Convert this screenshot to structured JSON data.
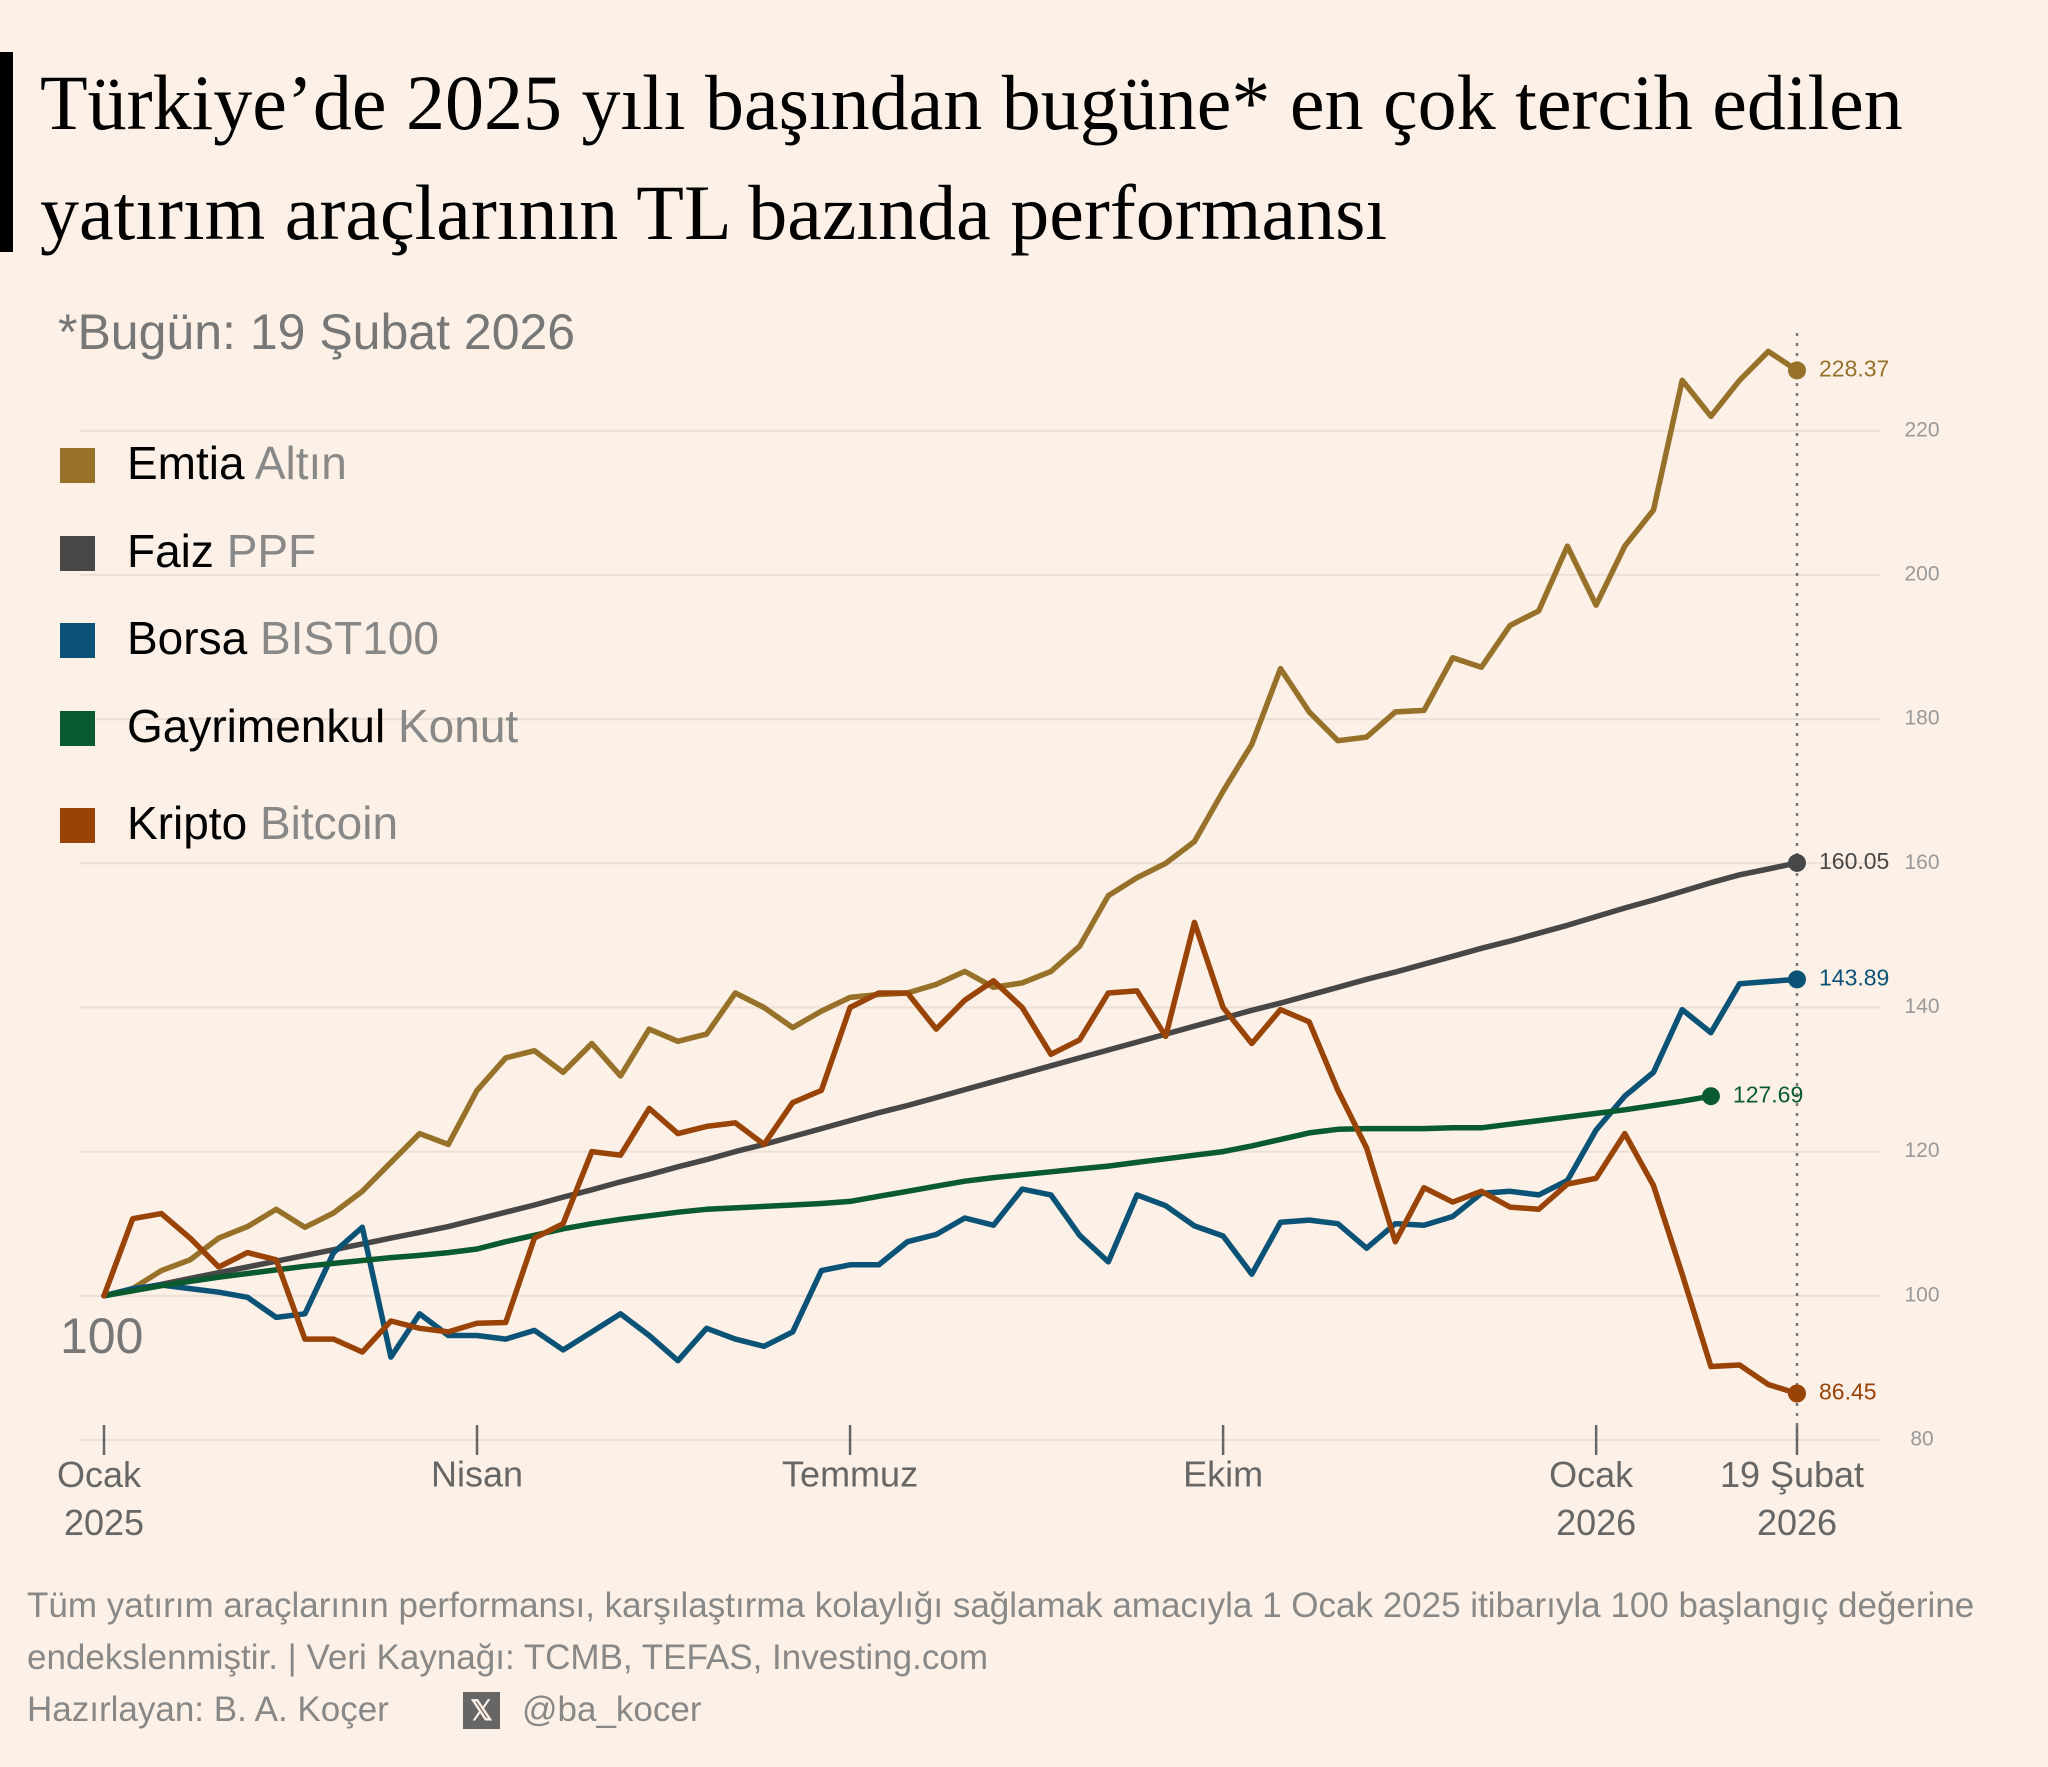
{
  "chart_data": {
    "type": "line",
    "title": "Türkiye’de 2025 yılı başından bugüne* en çok tercih edilen yatırım araçlarının TL bazında performansı",
    "subtitle": "*Bugün: 19 Şubat 2026",
    "start_label": 100,
    "note": "Tüm yatırım araçlarının performansı, karşılaştırma kolaylığı sağlamak amacıyla 1 Ocak 2025 itibarıyla 100 başlangıç değerine endekslenmiştir. | Veri Kaynağı: TCMB, TEFAS, Investing.com",
    "author": "Hazırlayan: B. A. Koçer",
    "handle": "@ba_kocer",
    "categories": [
      "Ocak 2025",
      null,
      null,
      null,
      null,
      null,
      null,
      null,
      null,
      null,
      null,
      null,
      null,
      "Nisan",
      null,
      null,
      null,
      null,
      null,
      null,
      null,
      null,
      null,
      null,
      null,
      null,
      "Temmuz",
      null,
      null,
      null,
      null,
      null,
      null,
      null,
      null,
      null,
      null,
      null,
      null,
      "Ekim",
      null,
      null,
      null,
      null,
      null,
      null,
      null,
      null,
      null,
      null,
      null,
      null,
      "Ocak 2026",
      null,
      null,
      null,
      null,
      null,
      null,
      "19 Şubat 2026"
    ],
    "ylim": [
      80,
      233
    ],
    "yticks": [
      80,
      100,
      120,
      140,
      160,
      180,
      200,
      220
    ],
    "grid": true,
    "series": [
      {
        "group": "Emtia",
        "name": "Altın",
        "color": "#977129",
        "values": [
          100,
          101,
          103.5,
          105,
          108,
          109.6,
          112,
          109.5,
          111.5,
          114.5,
          118.5,
          122.5,
          121,
          128.5,
          133,
          134,
          131,
          135,
          130.5,
          137,
          135.3,
          136.3,
          142,
          140,
          137.2,
          139.5,
          141.4,
          141.8,
          142,
          143.2,
          145,
          142.8,
          143.4,
          145,
          148.5,
          155.5,
          158,
          160,
          163,
          170,
          176.5,
          187,
          181,
          177,
          177.5,
          181,
          181.2,
          188.5,
          187.2,
          193,
          195,
          204,
          195.8,
          204,
          209,
          227,
          222,
          227,
          231,
          228.37
        ]
      },
      {
        "group": "Faiz",
        "name": "PPF",
        "color": "#474747",
        "values": [
          100,
          100.8,
          101.6,
          102.4,
          103.2,
          104,
          104.8,
          105.6,
          106.4,
          107.2,
          108,
          108.8,
          109.6,
          110.6,
          111.6,
          112.6,
          113.7,
          114.7,
          115.8,
          116.8,
          117.9,
          118.9,
          120,
          121,
          122.1,
          123.2,
          124.3,
          125.4,
          126.4,
          127.5,
          128.6,
          129.7,
          130.8,
          131.9,
          133,
          134.1,
          135.2,
          136.3,
          137.4,
          138.5,
          139.6,
          140.6,
          141.7,
          142.8,
          143.9,
          144.9,
          146,
          147.1,
          148.2,
          149.2,
          150.3,
          151.4,
          152.6,
          153.8,
          154.9,
          156.1,
          157.3,
          158.4,
          159.2,
          160.05
        ]
      },
      {
        "group": "Borsa",
        "name": "BIST100",
        "color": "#0b5277",
        "values": [
          100,
          101,
          101.5,
          101,
          100.5,
          99.8,
          97,
          97.5,
          106,
          109.5,
          91.5,
          97.5,
          94.5,
          94.5,
          94,
          95.2,
          92.5,
          95,
          97.5,
          94.5,
          91,
          95.5,
          94,
          93,
          95,
          103.5,
          104.3,
          104.3,
          107.5,
          108.5,
          110.8,
          109.8,
          114.8,
          114,
          108.4,
          104.7,
          114,
          112.5,
          109.7,
          108.3,
          103,
          110.2,
          110.5,
          110,
          106.6,
          110,
          109.8,
          111,
          114.2,
          114.5,
          114,
          116,
          123,
          127.7,
          131,
          139.7,
          136.5,
          143.3,
          143.6,
          143.89
        ]
      },
      {
        "group": "Gayrimenkul",
        "name": "Konut",
        "color": "#0a5a2f",
        "values": [
          100,
          100.7,
          101.4,
          102,
          102.6,
          103.1,
          103.6,
          104.1,
          104.5,
          104.9,
          105.3,
          105.6,
          106,
          106.5,
          107.5,
          108.4,
          109.3,
          110,
          110.6,
          111.1,
          111.6,
          112,
          112.2,
          112.4,
          112.6,
          112.8,
          113.1,
          113.8,
          114.5,
          115.2,
          115.9,
          116.4,
          116.8,
          117.2,
          117.6,
          118,
          118.5,
          119,
          119.5,
          120,
          120.8,
          121.7,
          122.6,
          123.1,
          123.2,
          123.2,
          123.2,
          123.3,
          123.3,
          123.8,
          124.3,
          124.8,
          125.3,
          125.8,
          126.4,
          127,
          127.69,
          null,
          null,
          null
        ]
      },
      {
        "group": "Kripto",
        "name": "Bitcoin",
        "color": "#9a4306",
        "values": [
          100,
          110.7,
          111.4,
          108,
          104,
          106,
          105,
          94,
          94,
          92.2,
          96.5,
          95.5,
          95,
          96.2,
          96.3,
          108,
          110,
          120,
          119.5,
          126,
          122.5,
          123.5,
          124,
          121,
          126.8,
          128.5,
          140,
          142,
          142,
          137,
          141,
          143.7,
          140,
          133.5,
          135.5,
          142,
          142.3,
          136,
          151.8,
          140,
          135,
          139.7,
          138,
          128.5,
          120.5,
          107.5,
          115,
          113,
          114.5,
          112.3,
          112,
          115.5,
          116.3,
          122.5,
          115.3,
          103,
          90.2,
          90.4,
          87.7,
          86.45
        ]
      }
    ]
  }
}
